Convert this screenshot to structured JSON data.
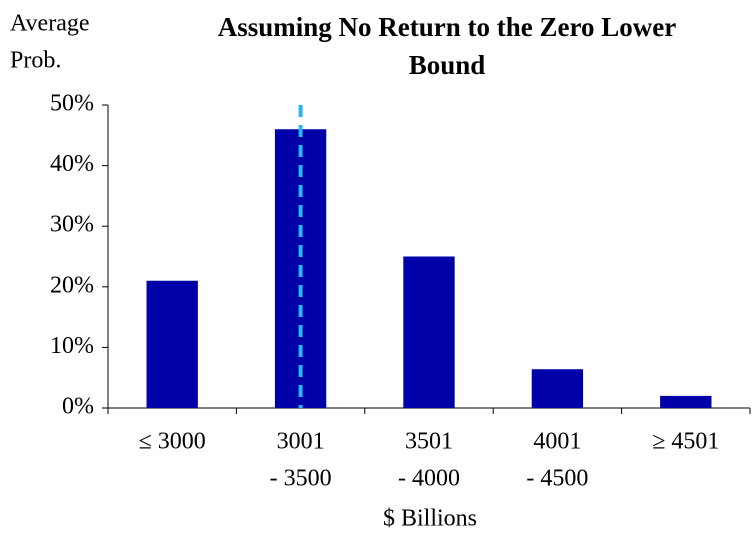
{
  "chart_data": {
    "type": "bar",
    "title": [
      "Assuming No Return to the Zero Lower",
      "Bound"
    ],
    "y_label": [
      "Average",
      "Prob."
    ],
    "x_label": "$ Billions",
    "categories": [
      [
        "≤ 3000"
      ],
      [
        "3001",
        "- 3500"
      ],
      [
        "3501",
        "- 4000"
      ],
      [
        "4001",
        "- 4500"
      ],
      [
        "≥ 4501"
      ]
    ],
    "values": [
      21,
      46,
      25,
      6.4,
      2
    ],
    "color": "#0000a8",
    "ylim": [
      0,
      50
    ],
    "yticks": [
      {
        "value": 0,
        "label": "0%"
      },
      {
        "value": 10,
        "label": "10%"
      },
      {
        "value": 20,
        "label": "20%"
      },
      {
        "value": 30,
        "label": "30%"
      },
      {
        "value": 40,
        "label": "40%"
      },
      {
        "value": 50,
        "label": "50%"
      }
    ],
    "grid": false,
    "reference_line": {
      "category": 1,
      "color": "#29b6f6",
      "style": "dashed"
    }
  }
}
